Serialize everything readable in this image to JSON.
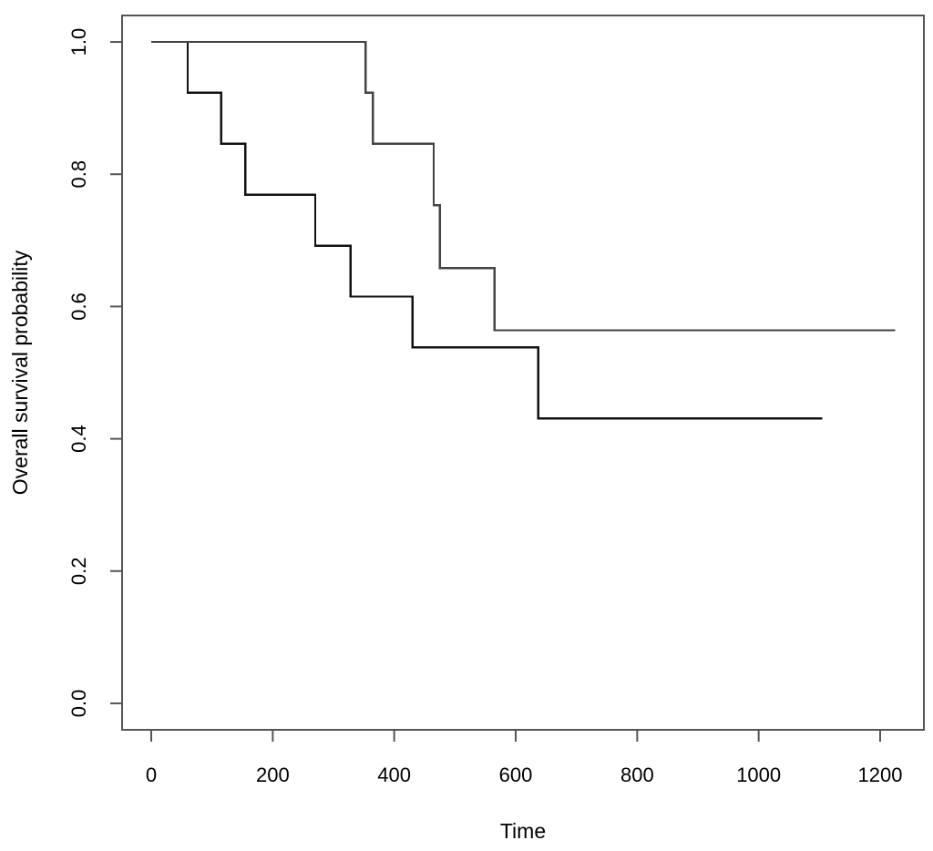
{
  "chart_data": {
    "type": "line",
    "step": true,
    "title": "",
    "xlabel": "Time",
    "ylabel": "Overall survival probability",
    "xlim": [
      -48,
      1272
    ],
    "ylim": [
      -0.04,
      1.04
    ],
    "xticks": [
      0,
      200,
      400,
      600,
      800,
      1000,
      1200
    ],
    "yticks": [
      0.0,
      0.2,
      0.4,
      0.6,
      0.8,
      1.0
    ],
    "xtick_labels": [
      "0",
      "200",
      "400",
      "600",
      "800",
      "1000",
      "1200"
    ],
    "ytick_labels": [
      "0.0",
      "0.2",
      "0.4",
      "0.6",
      "0.8",
      "1.0"
    ],
    "grid": false,
    "legend": "none",
    "series": [
      {
        "color": "#111111",
        "points": [
          [
            0,
            1.0
          ],
          [
            60,
            0.923
          ],
          [
            115,
            0.846
          ],
          [
            155,
            0.769
          ],
          [
            270,
            0.692
          ],
          [
            328,
            0.615
          ],
          [
            430,
            0.538
          ],
          [
            637,
            0.431
          ],
          [
            1105,
            0.431
          ]
        ]
      },
      {
        "color": "#444444",
        "points": [
          [
            0,
            1.0
          ],
          [
            353,
            0.923
          ],
          [
            365,
            0.846
          ],
          [
            465,
            0.753
          ],
          [
            475,
            0.658
          ],
          [
            565,
            0.564
          ],
          [
            1225,
            0.564
          ]
        ]
      }
    ]
  }
}
